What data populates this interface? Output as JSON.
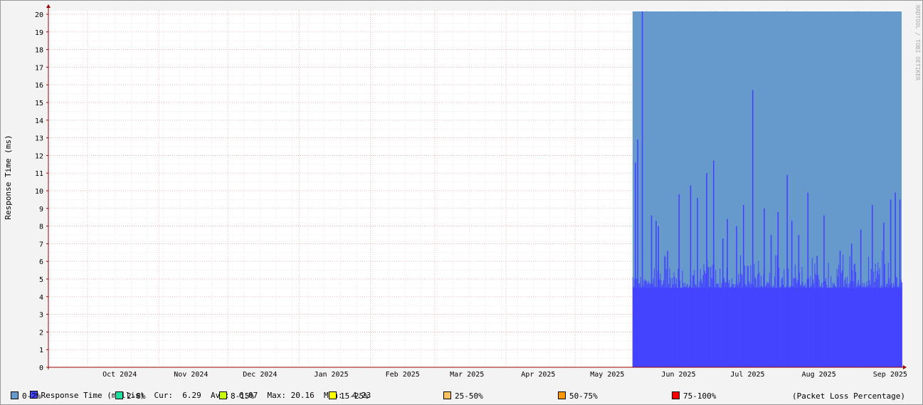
{
  "chart_data": {
    "type": "area",
    "ylabel": "Response Time (ms)",
    "ylim": [
      0,
      20
    ],
    "yticks": [
      0,
      1,
      2,
      3,
      4,
      5,
      6,
      7,
      8,
      9,
      10,
      11,
      12,
      13,
      14,
      15,
      16,
      17,
      18,
      19,
      20
    ],
    "x_start": "2024-09-14",
    "x_end": "2025-09-20",
    "data_start": "2025-05-26",
    "months": [
      {
        "label": "Oct 2024",
        "date": "2024-10-15"
      },
      {
        "label": "Nov 2024",
        "date": "2024-11-15"
      },
      {
        "label": "Dec 2024",
        "date": "2024-12-15"
      },
      {
        "label": "Jan 2025",
        "date": "2025-01-15"
      },
      {
        "label": "Feb 2025",
        "date": "2025-02-15"
      },
      {
        "label": "Mar 2025",
        "date": "2025-03-15"
      },
      {
        "label": "Apr 2025",
        "date": "2025-04-15"
      },
      {
        "label": "May 2025",
        "date": "2025-05-15"
      },
      {
        "label": "Jun 2025",
        "date": "2025-06-15"
      },
      {
        "label": "Jul 2025",
        "date": "2025-07-15"
      },
      {
        "label": "Aug 2025",
        "date": "2025-08-15"
      },
      {
        "label": "Sep 2025",
        "date": "2025-09-15"
      }
    ],
    "series": [
      {
        "name": "Response Time (millis)",
        "color": "#4444ff",
        "baseline": 4.5,
        "spikes": [
          {
            "x": "2025-05-27",
            "y": 11.6
          },
          {
            "x": "2025-05-28",
            "y": 12.9
          },
          {
            "x": "2025-05-30",
            "y": 20.16
          },
          {
            "x": "2025-06-03",
            "y": 8.6
          },
          {
            "x": "2025-06-05",
            "y": 8.3
          },
          {
            "x": "2025-06-06",
            "y": 8.0
          },
          {
            "x": "2025-06-10",
            "y": 6.6
          },
          {
            "x": "2025-06-15",
            "y": 9.8
          },
          {
            "x": "2025-06-20",
            "y": 10.3
          },
          {
            "x": "2025-06-23",
            "y": 9.6
          },
          {
            "x": "2025-06-27",
            "y": 11.0
          },
          {
            "x": "2025-06-30",
            "y": 11.7
          },
          {
            "x": "2025-07-04",
            "y": 7.3
          },
          {
            "x": "2025-07-06",
            "y": 8.4
          },
          {
            "x": "2025-07-10",
            "y": 8.0
          },
          {
            "x": "2025-07-13",
            "y": 9.2
          },
          {
            "x": "2025-07-17",
            "y": 15.7
          },
          {
            "x": "2025-07-22",
            "y": 9.0
          },
          {
            "x": "2025-07-25",
            "y": 7.5
          },
          {
            "x": "2025-07-28",
            "y": 8.8
          },
          {
            "x": "2025-08-01",
            "y": 10.9
          },
          {
            "x": "2025-08-03",
            "y": 8.3
          },
          {
            "x": "2025-08-06",
            "y": 7.5
          },
          {
            "x": "2025-08-10",
            "y": 9.9
          },
          {
            "x": "2025-08-14",
            "y": 6.3
          },
          {
            "x": "2025-08-17",
            "y": 8.6
          },
          {
            "x": "2025-08-24",
            "y": 6.6
          },
          {
            "x": "2025-08-29",
            "y": 7.0
          },
          {
            "x": "2025-09-02",
            "y": 7.8
          },
          {
            "x": "2025-09-07",
            "y": 9.2
          },
          {
            "x": "2025-09-12",
            "y": 8.2
          },
          {
            "x": "2025-09-15",
            "y": 9.5
          },
          {
            "x": "2025-09-17",
            "y": 9.9
          },
          {
            "x": "2025-09-19",
            "y": 9.5
          }
        ]
      },
      {
        "name": "0-2%",
        "color": "#6699cc"
      }
    ],
    "grid": true
  },
  "stats": {
    "series_label": "Response Time (millis)",
    "cur_label": "Cur:",
    "cur": "6.29",
    "avg_label": "Avg:",
    "avg": "6.07",
    "max_label": "Max:",
    "max": "20.16",
    "min_label": "Min:",
    "min": "4.23"
  },
  "legend": {
    "items": [
      {
        "label": "0-2%",
        "color": "#6699cc"
      },
      {
        "label": "2-8%",
        "color": "#20e0a0"
      },
      {
        "label": "8-15%",
        "color": "#c8ff00"
      },
      {
        "label": "15-25%",
        "color": "#ffff00"
      },
      {
        "label": "25-50%",
        "color": "#ffc060"
      },
      {
        "label": "50-75%",
        "color": "#ff9900"
      },
      {
        "label": "75-100%",
        "color": "#ff0000"
      }
    ],
    "note": "(Packet Loss Percentage)"
  },
  "watermark": "RRDTOOL / TOBI OETIKER",
  "colors": {
    "rtt": "#4444ff",
    "loss_band": "#6699cc",
    "grid_major": "#e7a0a0",
    "axis": "#990000"
  }
}
